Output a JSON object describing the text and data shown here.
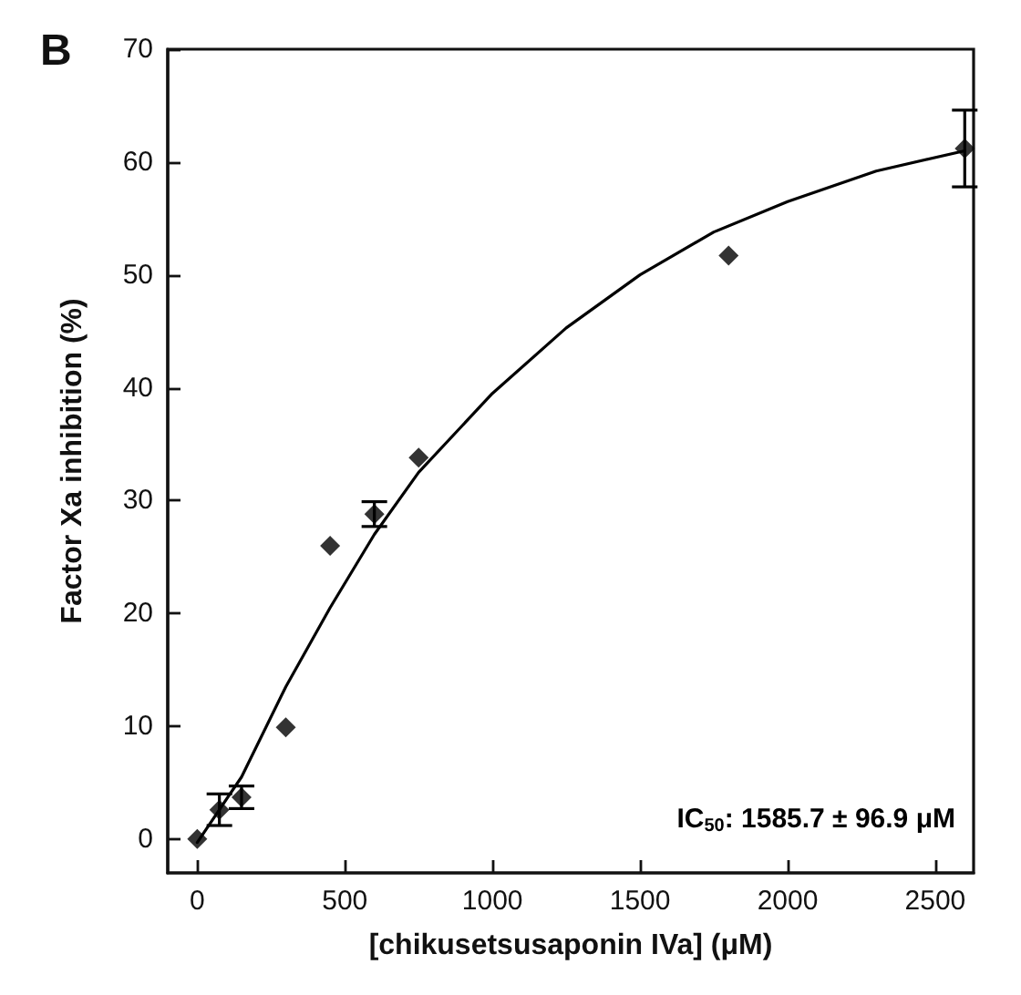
{
  "chart_data": {
    "type": "scatter",
    "xlabel": "[chikusetsusaponin IVa] (μM)",
    "ylabel": "Factor Xa inhibition (%)",
    "annotations": [
      "B",
      "IC$_{50}$: 1585.7 ± 96.9 μM"
    ],
    "xlim": [
      -100,
      2630
    ],
    "xticks": [
      0,
      500,
      1000,
      1500,
      2000,
      2500
    ],
    "ylim": [
      -3,
      70
    ],
    "yticks": [
      0,
      10,
      20,
      30,
      40,
      50,
      60,
      70
    ],
    "grid": false,
    "marker": "diamond",
    "series": [
      {
        "color": "#000000",
        "x": [
          0,
          75,
          150,
          300,
          450,
          600,
          750,
          1800,
          2600
        ],
        "values": [
          0,
          2.6,
          3.7,
          9.9,
          26,
          28.8,
          33.8,
          51.7,
          61.2
        ],
        "errors": [
          null,
          1.4,
          1,
          null,
          null,
          1.1,
          null,
          null,
          3.4
        ]
      },
      {
        "type": "line",
        "color": "#000000",
        "marker": "none",
        "line_style": "solid",
        "x": [
          0,
          150,
          300,
          450,
          600,
          750,
          1000,
          1250,
          1500,
          1750,
          2000,
          2300,
          2600
        ],
        "values": [
          -0.3,
          5.5,
          13.5,
          20.5,
          27,
          32.5,
          39.5,
          45.3,
          50,
          53.8,
          56.5,
          59.2,
          61
        ]
      }
    ]
  }
}
